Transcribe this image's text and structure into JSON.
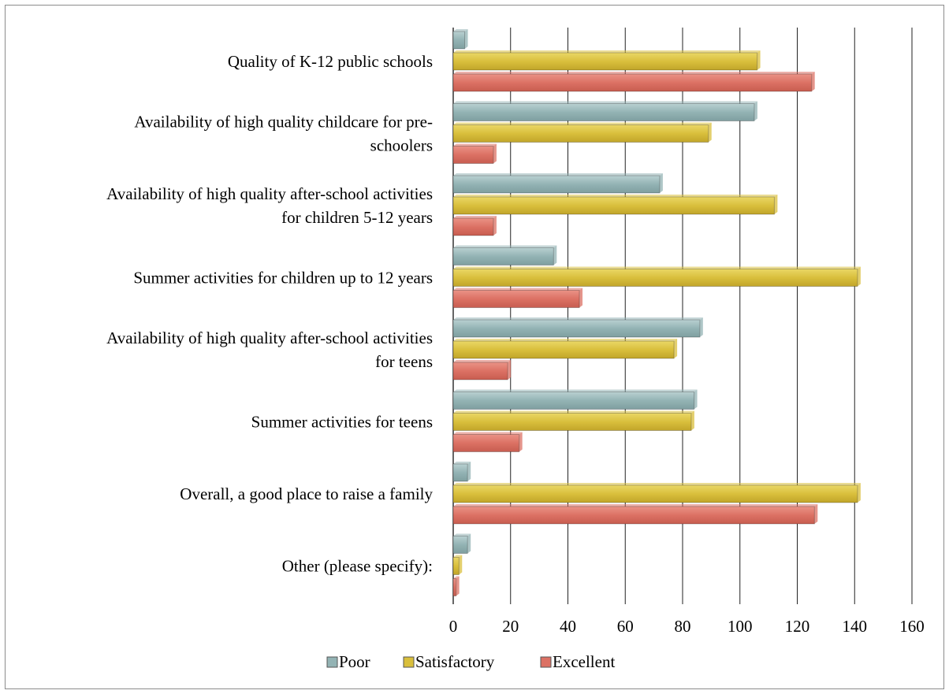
{
  "chart_data": {
    "type": "bar",
    "orientation": "horizontal",
    "categories": [
      [
        "Quality of K-12 public schools"
      ],
      [
        "Availability of high quality childcare for pre-",
        "schoolers"
      ],
      [
        "Availability of high quality after-school activities",
        "for children 5-12 years"
      ],
      [
        "Summer activities for children up to 12 years"
      ],
      [
        "Availability of high quality after-school activities",
        "for teens"
      ],
      [
        "Summer activities for teens"
      ],
      [
        "Overall, a good place to raise a family"
      ],
      [
        "Other (please specify):"
      ]
    ],
    "series": [
      {
        "name": "Poor",
        "color": "#93b3b4",
        "values": [
          4,
          105,
          72,
          35,
          86,
          84,
          5,
          5
        ]
      },
      {
        "name": "Satisfactory",
        "color": "#d9bf3c",
        "values": [
          106,
          89,
          112,
          141,
          77,
          83,
          141,
          2
        ]
      },
      {
        "name": "Excellent",
        "color": "#dc7164",
        "values": [
          125,
          14,
          14,
          44,
          19,
          23,
          126,
          1
        ]
      }
    ],
    "xlim": [
      0,
      160
    ],
    "xticks": [
      "0",
      "20",
      "40",
      "60",
      "80",
      "100",
      "120",
      "140",
      "160"
    ],
    "grid": true,
    "legend_position": "bottom"
  }
}
